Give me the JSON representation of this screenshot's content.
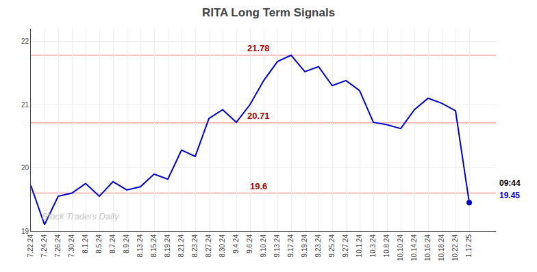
{
  "chart_data": {
    "type": "line",
    "title": "RITA Long Term Signals",
    "categories": [
      "7.22.24",
      "7.24.24",
      "7.26.24",
      "7.30.24",
      "8.1.24",
      "8.5.24",
      "8.7.24",
      "8.9.24",
      "8.13.24",
      "8.15.24",
      "8.19.24",
      "8.21.24",
      "8.23.24",
      "8.27.24",
      "8.30.24",
      "9.4.24",
      "9.6.24",
      "9.10.24",
      "9.13.24",
      "9.17.24",
      "9.19.24",
      "9.23.24",
      "9.25.24",
      "9.27.24",
      "10.1.24",
      "10.3.24",
      "10.8.24",
      "10.10.24",
      "10.14.24",
      "10.16.24",
      "10.18.24",
      "10.22.24",
      "1.17.25"
    ],
    "values": [
      19.72,
      19.1,
      19.55,
      19.6,
      19.75,
      19.55,
      19.78,
      19.65,
      19.7,
      19.9,
      19.82,
      20.28,
      20.18,
      20.78,
      20.92,
      20.72,
      21.0,
      21.38,
      21.68,
      21.78,
      21.52,
      21.6,
      21.3,
      21.38,
      21.22,
      20.72,
      20.68,
      20.62,
      20.92,
      21.1,
      21.02,
      20.9,
      19.45
    ],
    "color": "#0000cc",
    "hlines": {
      "values": [
        21.78,
        20.71,
        19.6
      ],
      "color": "#f5a0a0",
      "label_color": "#aa0000"
    },
    "annotations": [
      {
        "text": "09:44",
        "color": "#000000"
      },
      {
        "text": "19.45",
        "color": "#0000cc"
      }
    ],
    "watermark": {
      "text": "Stock Traders Daily",
      "color": "#bbbbbb"
    },
    "ylim": [
      19.0,
      22.2
    ],
    "yticks": [
      19,
      20,
      21,
      22
    ],
    "grid": true
  }
}
